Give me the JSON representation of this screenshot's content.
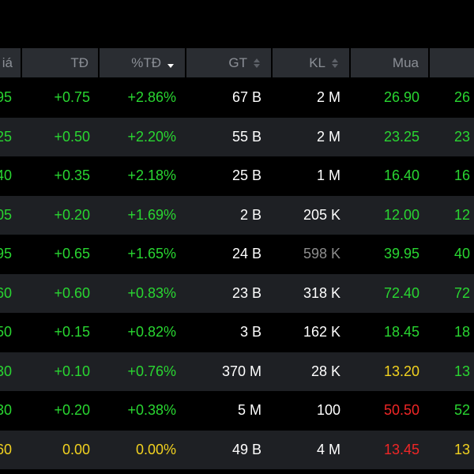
{
  "colors": {
    "up": "#29d631",
    "reference": "#f2d21f",
    "down": "#f02626",
    "neutral": "#ffffff",
    "muted": "#8d8d8d",
    "header_bg": "#2a2d32",
    "row_alt_bg": "#1e2024"
  },
  "header": {
    "gia": "iá",
    "td": "TĐ",
    "pct_td": "%TĐ",
    "gt": "GT",
    "kl": "KL",
    "mua": "Mua"
  },
  "rows": [
    {
      "gia": "95",
      "gia_color": "green",
      "td": "+0.75",
      "td_color": "green",
      "pct": "+2.86%",
      "pct_color": "green",
      "gt": "67 B",
      "kl": "2 M",
      "kl_color": "white",
      "mua": "26.90",
      "mua_color": "green",
      "next": "26",
      "next_color": "green"
    },
    {
      "gia": "25",
      "gia_color": "green",
      "td": "+0.50",
      "td_color": "green",
      "pct": "+2.20%",
      "pct_color": "green",
      "gt": "55 B",
      "kl": "2 M",
      "kl_color": "white",
      "mua": "23.25",
      "mua_color": "green",
      "next": "23",
      "next_color": "green"
    },
    {
      "gia": "40",
      "gia_color": "green",
      "td": "+0.35",
      "td_color": "green",
      "pct": "+2.18%",
      "pct_color": "green",
      "gt": "25 B",
      "kl": "1 M",
      "kl_color": "white",
      "mua": "16.40",
      "mua_color": "green",
      "next": "16",
      "next_color": "green"
    },
    {
      "gia": "05",
      "gia_color": "green",
      "td": "+0.20",
      "td_color": "green",
      "pct": "+1.69%",
      "pct_color": "green",
      "gt": "2 B",
      "kl": "205 K",
      "kl_color": "white",
      "mua": "12.00",
      "mua_color": "green",
      "next": "12",
      "next_color": "green"
    },
    {
      "gia": "95",
      "gia_color": "green",
      "td": "+0.65",
      "td_color": "green",
      "pct": "+1.65%",
      "pct_color": "green",
      "gt": "24 B",
      "kl": "598 K",
      "kl_color": "gray",
      "mua": "39.95",
      "mua_color": "green",
      "next": "40",
      "next_color": "green"
    },
    {
      "gia": "60",
      "gia_color": "green",
      "td": "+0.60",
      "td_color": "green",
      "pct": "+0.83%",
      "pct_color": "green",
      "gt": "23 B",
      "kl": "318 K",
      "kl_color": "white",
      "mua": "72.40",
      "mua_color": "green",
      "next": "72",
      "next_color": "green"
    },
    {
      "gia": "50",
      "gia_color": "green",
      "td": "+0.15",
      "td_color": "green",
      "pct": "+0.82%",
      "pct_color": "green",
      "gt": "3 B",
      "kl": "162 K",
      "kl_color": "white",
      "mua": "18.45",
      "mua_color": "green",
      "next": "18",
      "next_color": "green"
    },
    {
      "gia": "30",
      "gia_color": "green",
      "td": "+0.10",
      "td_color": "green",
      "pct": "+0.76%",
      "pct_color": "green",
      "gt": "370 M",
      "kl": "28 K",
      "kl_color": "white",
      "mua": "13.20",
      "mua_color": "yellow",
      "next": "13",
      "next_color": "green"
    },
    {
      "gia": "30",
      "gia_color": "green",
      "td": "+0.20",
      "td_color": "green",
      "pct": "+0.38%",
      "pct_color": "green",
      "gt": "5 M",
      "kl": "100",
      "kl_color": "white",
      "mua": "50.50",
      "mua_color": "red",
      "next": "52",
      "next_color": "green"
    },
    {
      "gia": "60",
      "gia_color": "yellow",
      "td": "0.00",
      "td_color": "yellow",
      "pct": "0.00%",
      "pct_color": "yellow",
      "gt": "49 B",
      "kl": "4 M",
      "kl_color": "white",
      "mua": "13.45",
      "mua_color": "red",
      "next": "13",
      "next_color": "yellow"
    }
  ]
}
